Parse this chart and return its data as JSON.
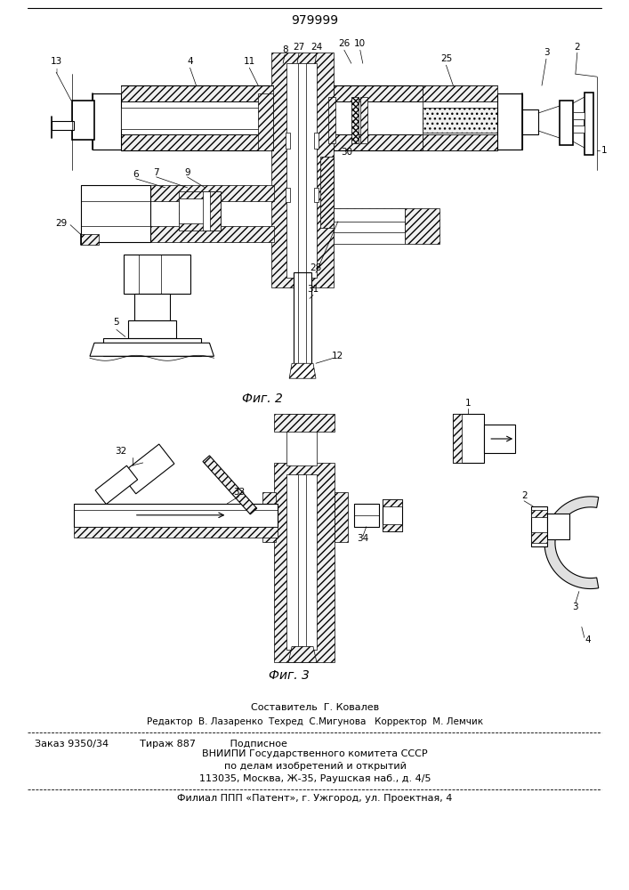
{
  "patent_number": "979999",
  "bg_color": "#ffffff",
  "fig2_caption": "Фиг. 2",
  "fig3_caption": "Фиг. 3",
  "footer_line1": "Составитель  Г. Ковалев",
  "footer_line2": "Редактор  В. Лазаренко  Техред  С.Мигунова   Корректор  М. Лемчик",
  "footer_line3": "Заказ 9350/34          Тираж 887           Подписное",
  "footer_line4": "ВНИИПИ Государственного комитета СССР",
  "footer_line5": "по делам изобретений и открытий",
  "footer_line6": "113035, Москва, Ж-35, Раушская наб., д. 4/5",
  "footer_line7": "Филиал ППП «Патент», г. Ужгород, ул. Проектная, 4"
}
